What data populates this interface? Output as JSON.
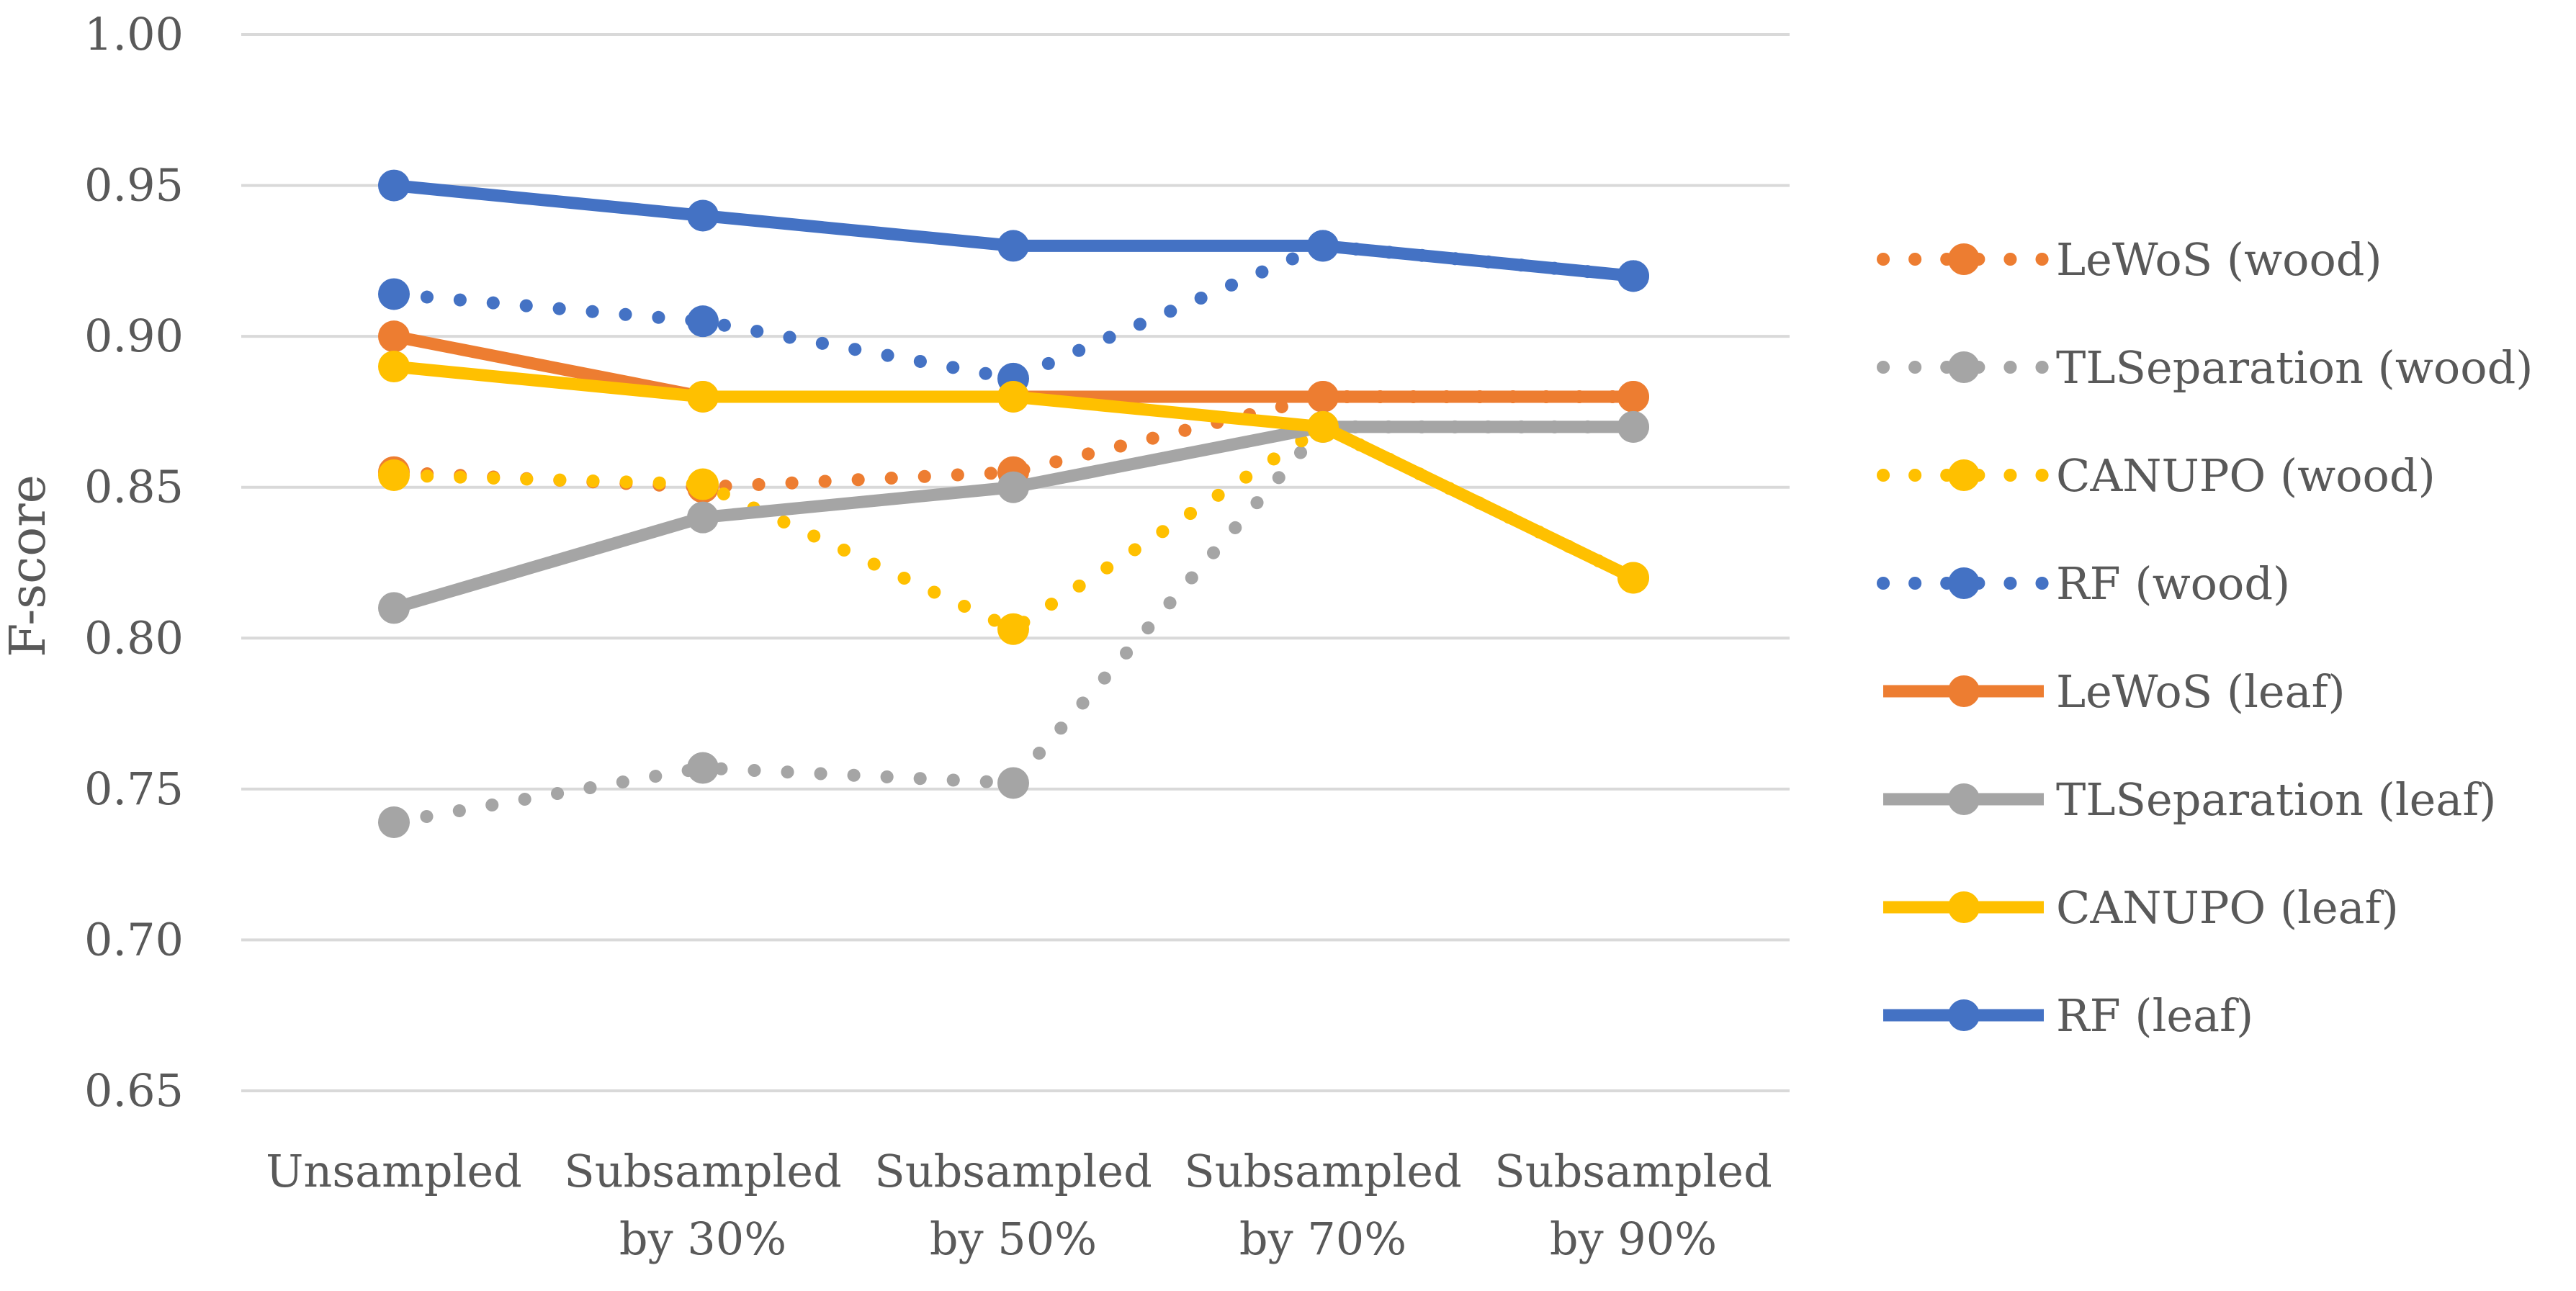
{
  "chart_data": {
    "type": "line",
    "title": "",
    "xlabel": "",
    "ylabel": "F-score",
    "ylim": [
      0.65,
      1.0
    ],
    "yticks": [
      0.65,
      0.7,
      0.75,
      0.8,
      0.85,
      0.9,
      0.95,
      1.0
    ],
    "ytick_labels": [
      "0.65",
      "0.70",
      "0.75",
      "0.80",
      "0.85",
      "0.90",
      "0.95",
      "1.00"
    ],
    "grid": true,
    "legend_position": "right",
    "categories": [
      [
        "Unsampled"
      ],
      [
        "Subsampled",
        "by 30%"
      ],
      [
        "Subsampled",
        "by 50%"
      ],
      [
        "Subsampled",
        "by 70%"
      ],
      [
        "Subsampled",
        "by 90%"
      ]
    ],
    "series": [
      {
        "name": "LeWoS (wood)",
        "style": "dotted",
        "color": "#ED7D31",
        "values": [
          0.855,
          0.85,
          0.855,
          0.88,
          0.88
        ]
      },
      {
        "name": "TLSeparation (wood)",
        "style": "dotted",
        "color": "#A5A5A5",
        "values": [
          0.739,
          0.757,
          0.752,
          0.87,
          0.87
        ]
      },
      {
        "name": "CANUPO (wood)",
        "style": "dotted",
        "color": "#FFC000",
        "values": [
          0.854,
          0.851,
          0.803,
          0.87,
          0.82
        ]
      },
      {
        "name": "RF (wood)",
        "style": "dotted",
        "color": "#4472C4",
        "values": [
          0.914,
          0.905,
          0.886,
          0.93,
          0.92
        ]
      },
      {
        "name": "LeWoS (leaf)",
        "style": "solid",
        "color": "#ED7D31",
        "values": [
          0.9,
          0.88,
          0.88,
          0.88,
          0.88
        ]
      },
      {
        "name": "TLSeparation (leaf)",
        "style": "solid",
        "color": "#A5A5A5",
        "values": [
          0.81,
          0.84,
          0.85,
          0.87,
          0.87
        ]
      },
      {
        "name": "CANUPO (leaf)",
        "style": "solid",
        "color": "#FFC000",
        "values": [
          0.89,
          0.88,
          0.88,
          0.87,
          0.82
        ]
      },
      {
        "name": "RF (leaf)",
        "style": "solid",
        "color": "#4472C4",
        "values": [
          0.95,
          0.94,
          0.93,
          0.93,
          0.92
        ]
      }
    ]
  }
}
